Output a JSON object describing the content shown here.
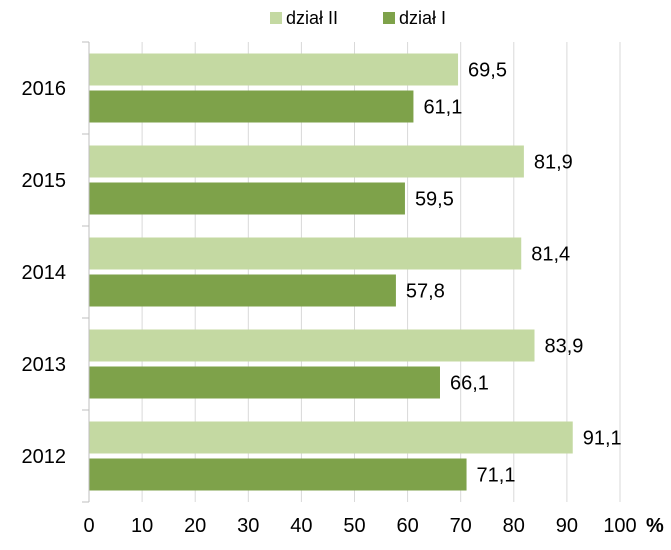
{
  "chart_data": {
    "type": "bar",
    "orientation": "horizontal",
    "categories": [
      "2016",
      "2015",
      "2014",
      "2013",
      "2012"
    ],
    "series": [
      {
        "name": "dział II",
        "values": [
          69.5,
          81.9,
          81.4,
          83.9,
          91.1
        ],
        "labels": [
          "69,5",
          "81,9",
          "81,4",
          "83,9",
          "91,1"
        ],
        "color": "#c4d9a2"
      },
      {
        "name": "dział I",
        "values": [
          61.1,
          59.5,
          57.8,
          66.1,
          71.1
        ],
        "labels": [
          "61,1",
          "59,5",
          "57,8",
          "66,1",
          "71,1"
        ],
        "color": "#7ea24a"
      }
    ],
    "xlim": [
      0,
      100
    ],
    "xticks": [
      "0",
      "10",
      "20",
      "30",
      "40",
      "50",
      "60",
      "70",
      "80",
      "90",
      "100"
    ],
    "x_unit": "%",
    "grid": true,
    "legend_position": "top"
  },
  "colors": {
    "grid": "#d9d9d9",
    "axis": "#bfbfbf"
  }
}
